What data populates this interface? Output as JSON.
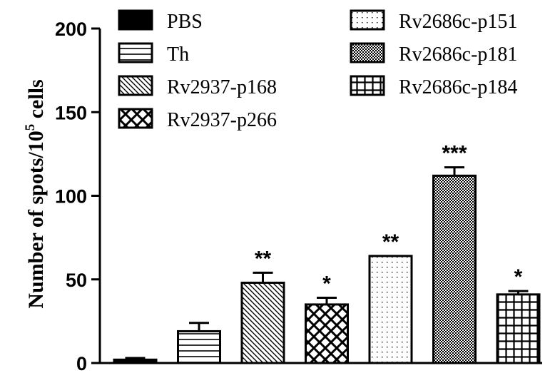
{
  "chart_data": {
    "type": "bar",
    "ylabel_main": "Number of spots/10",
    "ylabel_sup": "5",
    "ylabel_tail": " cells",
    "ylim": [
      0,
      200
    ],
    "yticks": [
      0,
      50,
      100,
      150,
      200
    ],
    "legend_position": "top",
    "series": [
      {
        "name": "PBS",
        "value": 2,
        "error": 1,
        "significance": "",
        "pattern": "solid"
      },
      {
        "name": "Th",
        "value": 19,
        "error": 5,
        "significance": "",
        "pattern": "hlines"
      },
      {
        "name": "Rv2937-p168",
        "value": 48,
        "error": 6,
        "significance": "**",
        "pattern": "diag"
      },
      {
        "name": "Rv2937-p266",
        "value": 35,
        "error": 4,
        "significance": "*",
        "pattern": "crosshatch"
      },
      {
        "name": "Rv2686c-p151",
        "value": 64,
        "error": 0,
        "significance": "**",
        "pattern": "dots"
      },
      {
        "name": "Rv2686c-p181",
        "value": 112,
        "error": 5,
        "significance": "***",
        "pattern": "dense"
      },
      {
        "name": "Rv2686c-p184",
        "value": 41,
        "error": 2,
        "significance": "*",
        "pattern": "grid"
      }
    ]
  }
}
